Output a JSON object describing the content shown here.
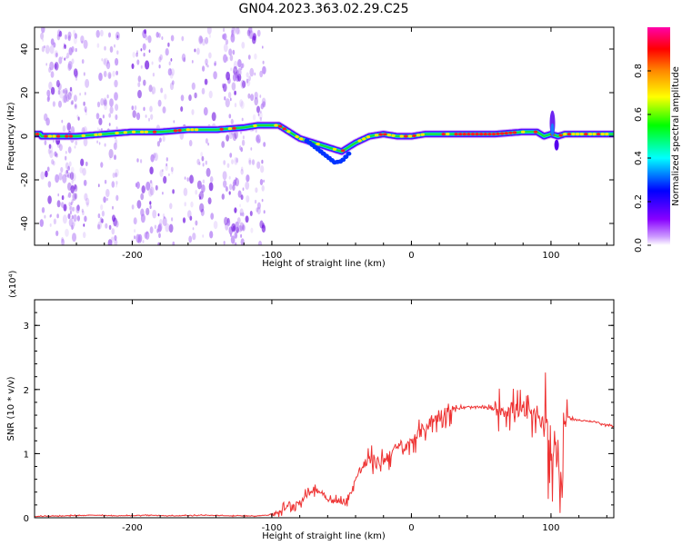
{
  "title": "GN04.2023.363.02.29.C25",
  "colors": {
    "snr_line": "#ee3333",
    "spectrogram_ridge": "#ff2020",
    "scatter_purple": "#9a4df0"
  },
  "chart_data": [
    {
      "type": "heatmap",
      "title": "GN04.2023.363.02.29.C25",
      "xlabel": "Height of straight line (km)",
      "ylabel": "Frequency (Hz)",
      "xlim": [
        -270,
        145
      ],
      "ylim": [
        -50,
        50
      ],
      "xticks": [
        -200,
        -100,
        0,
        100
      ],
      "yticks": [
        -40,
        -20,
        0,
        20,
        40
      ],
      "colorbar": {
        "label": "Normalized spectral amplitude",
        "range": [
          0,
          1
        ],
        "ticks": [
          "0.0",
          "0.2",
          "0.4",
          "0.6",
          "0.8"
        ],
        "colors": [
          "#ffffff",
          "#8800ff",
          "#0000ff",
          "#00ffff",
          "#00ff00",
          "#ffff00",
          "#ff8800",
          "#ff0000",
          "#ff00aa"
        ]
      },
      "ridge": {
        "description_x": [
          -265,
          -240,
          -220,
          -200,
          -180,
          -160,
          -140,
          -120,
          -110,
          -100,
          -95,
          -90,
          -80,
          -70,
          -60,
          -50,
          -45,
          -40,
          -30,
          -20,
          -10,
          0,
          10,
          20,
          40,
          60,
          80,
          90,
          95,
          100,
          105,
          110,
          120,
          140,
          145
        ],
        "freq_y": [
          0,
          0,
          1,
          2,
          2,
          3,
          3,
          4,
          5,
          5,
          5,
          3,
          -1,
          -3,
          -5,
          -7,
          -5,
          -3,
          0,
          1,
          0,
          0,
          1,
          1,
          1,
          1,
          2,
          2,
          0,
          1,
          0,
          1,
          1,
          1,
          1
        ]
      }
    },
    {
      "type": "line",
      "xlabel": "Height of straight line (km)",
      "ylabel": "SNR (10 * v/v)",
      "scale_label": "(x10⁴)",
      "xlim": [
        -270,
        145
      ],
      "ylim": [
        0,
        3.4
      ],
      "xticks": [
        -200,
        -100,
        0,
        100
      ],
      "yticks": [
        0,
        1,
        2,
        3
      ],
      "series": [
        {
          "x": [
            -270,
            -250,
            -230,
            -210,
            -190,
            -170,
            -150,
            -130,
            -110,
            -100,
            -95,
            -90,
            -85,
            -80,
            -75,
            -70,
            -65,
            -60,
            -55,
            -50,
            -45,
            -40,
            -35,
            -30,
            -25,
            -20,
            -15,
            -10,
            -5,
            0,
            5,
            10,
            15,
            20,
            25,
            30,
            40,
            50,
            60,
            70,
            75,
            80,
            85,
            90,
            95,
            100,
            105,
            108,
            110,
            115,
            120,
            130,
            140,
            145
          ],
          "values": [
            0.02,
            0.03,
            0.04,
            0.03,
            0.04,
            0.03,
            0.04,
            0.03,
            0.03,
            0.05,
            0.1,
            0.15,
            0.2,
            0.25,
            0.35,
            0.45,
            0.4,
            0.3,
            0.25,
            0.25,
            0.3,
            0.6,
            0.8,
            0.9,
            0.85,
            0.9,
            1.0,
            1.1,
            1.05,
            1.2,
            1.3,
            1.4,
            1.5,
            1.6,
            1.65,
            1.7,
            1.72,
            1.72,
            1.7,
            1.68,
            1.7,
            1.65,
            1.6,
            1.55,
            1.5,
            1.2,
            0.9,
            0.3,
            1.6,
            1.55,
            1.52,
            1.5,
            1.45,
            1.42
          ]
        }
      ]
    }
  ]
}
